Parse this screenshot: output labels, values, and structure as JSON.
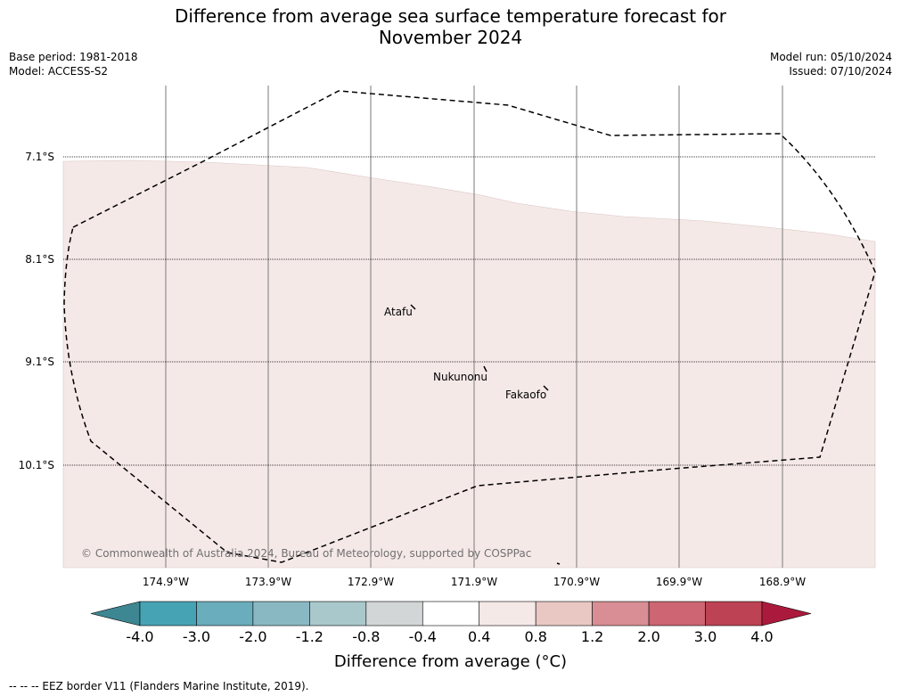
{
  "title_line1": "Difference from average sea surface temperature forecast for",
  "title_line2": "November 2024",
  "meta_left": {
    "base_period": "Base period: 1981-2018",
    "model": "Model: ACCESS-S2"
  },
  "meta_right": {
    "model_run": "Model run: 05/10/2024",
    "issued": "Issued: 07/10/2024"
  },
  "lat_labels": [
    "7.1°S",
    "8.1°S",
    "9.1°S",
    "10.1°S"
  ],
  "lon_labels": [
    "174.9°W",
    "173.9°W",
    "172.9°W",
    "171.9°W",
    "170.9°W",
    "169.9°W",
    "168.9°W"
  ],
  "places": {
    "atafu": "Atafu",
    "nukunonu": "Nukunonu",
    "fakaofo": "Fakaofo"
  },
  "copyright": "© Commonwealth of Australia 2024, Bureau of Meteorology, supported by COSPPac",
  "colorbar": {
    "ticks": [
      "-4.0",
      "-3.0",
      "-2.0",
      "-1.2",
      "-0.8",
      "-0.4",
      "0.4",
      "0.8",
      "1.2",
      "2.0",
      "3.0",
      "4.0"
    ],
    "colors": [
      "#3d8792",
      "#46a3b4",
      "#6aadbc",
      "#8ab8c2",
      "#a8c8cc",
      "#d3d6d6",
      "#ffffff",
      "#f5e9e8",
      "#e9c7c3",
      "#d88e94",
      "#cd6572",
      "#bd4254",
      "#ab1a3c"
    ],
    "label": "Difference from average (°C)"
  },
  "footnote": "--  --  -- EEZ border V11 (Flanders Marine Institute, 2019).",
  "map_colors": {
    "anomaly_fill": "#f5e9e8"
  }
}
